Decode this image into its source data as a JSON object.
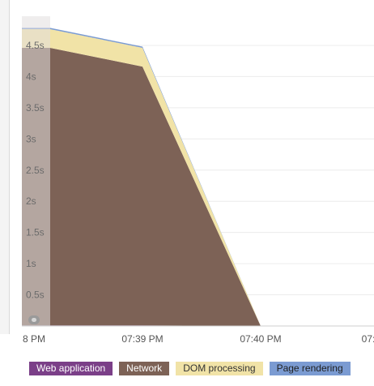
{
  "chart_data": {
    "type": "area",
    "stacked": true,
    "x": [
      "",
      "07:39 PM",
      "07:40 PM"
    ],
    "x_tick_labels": [
      "8 PM",
      "07:39 PM",
      "07:40 PM",
      "07:"
    ],
    "y_tick_labels": [
      "0.5s",
      "1s",
      "1.5s",
      "2s",
      "2.5s",
      "3s",
      "3.5s",
      "4s",
      "4.5s"
    ],
    "y_ticks": [
      0.5,
      1,
      1.5,
      2,
      2.5,
      3,
      3.5,
      4,
      4.5
    ],
    "ylim": [
      0,
      4.9
    ],
    "grid": true,
    "legend_position": "bottom",
    "series": [
      {
        "name": "Web application",
        "color": "#7b3f88",
        "values": [
          0.01,
          0.01,
          0.0
        ]
      },
      {
        "name": "Network",
        "color": "#7d6256",
        "values": [
          4.45,
          4.15,
          0.0
        ]
      },
      {
        "name": "DOM processing",
        "color": "#f1e3a7",
        "values": [
          0.3,
          0.3,
          0.0
        ]
      },
      {
        "name": "Page rendering",
        "color": "#7b9bd2",
        "values": [
          0.02,
          0.02,
          0.0
        ]
      }
    ]
  },
  "legend": {
    "items": [
      {
        "label": "Web application",
        "color": "#7b3f88",
        "text_color": "#ffffff"
      },
      {
        "label": "Network",
        "color": "#7d6256",
        "text_color": "#ffffff"
      },
      {
        "label": "DOM processing",
        "color": "#f1e3a7",
        "text_color": "#333333"
      },
      {
        "label": "Page rendering",
        "color": "#7b9bd2",
        "text_color": "#1f1f1f"
      }
    ]
  }
}
